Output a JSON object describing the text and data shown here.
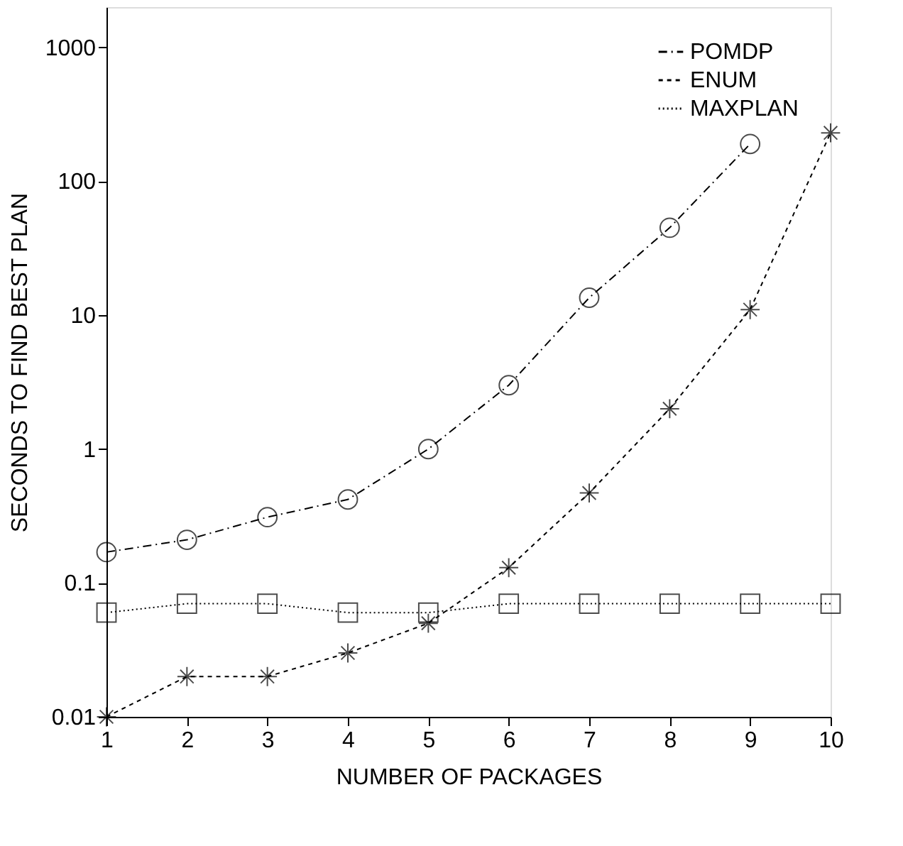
{
  "chart_data": {
    "type": "line",
    "xlabel": "NUMBER OF PACKAGES",
    "ylabel": "SECONDS TO FIND BEST PLAN",
    "x": [
      1,
      2,
      3,
      4,
      5,
      6,
      7,
      8,
      9,
      10
    ],
    "series": [
      {
        "name": "POMDP",
        "color": "#000000",
        "marker": "circle",
        "line_style": "dashdot",
        "values": [
          0.17,
          0.21,
          0.31,
          0.42,
          1.0,
          3.0,
          13.5,
          45,
          190,
          null
        ]
      },
      {
        "name": "ENUM",
        "color": "#000000",
        "marker": "cross",
        "line_style": "dashed",
        "values": [
          0.01,
          0.02,
          0.02,
          0.03,
          0.05,
          0.13,
          0.47,
          2.0,
          11,
          230
        ]
      },
      {
        "name": "MAXPLAN",
        "color": "#000000",
        "marker": "square",
        "line_style": "dotted",
        "values": [
          0.06,
          0.07,
          0.07,
          0.06,
          0.06,
          0.07,
          0.07,
          0.07,
          0.07,
          0.07
        ]
      }
    ],
    "log": "y",
    "xlim": [
      1,
      10
    ],
    "ylim": [
      0.01,
      2000
    ],
    "xticks": [
      1,
      2,
      3,
      4,
      5,
      6,
      7,
      8,
      9,
      10
    ],
    "yticks": [
      0.01,
      0.1,
      1,
      10,
      100,
      1000
    ],
    "grid": false,
    "legend": "top right"
  }
}
